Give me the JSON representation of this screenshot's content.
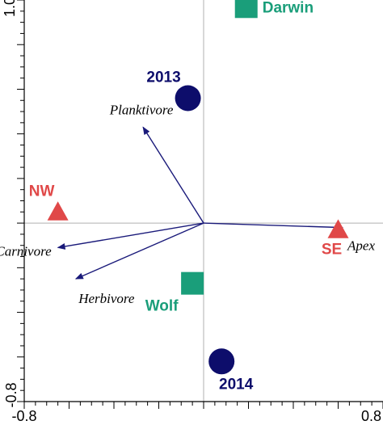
{
  "chart_data": {
    "type": "scatter",
    "title": "",
    "xlabel": "",
    "ylabel": "",
    "xlim": [
      -0.8,
      0.8
    ],
    "ylim": [
      -0.8,
      1.0
    ],
    "x_tick_labels": [
      "-0.8",
      "0.8"
    ],
    "y_tick_labels": [
      "1.0",
      "-0.8"
    ],
    "grid": false,
    "zero_lines": true,
    "colors": {
      "arrow": "#1a1a7a",
      "circle": "#0d0d6b",
      "square": "#1a9e7a",
      "triangle": "#e04848",
      "axis": "#000000",
      "zero_line": "#b0b0b0"
    },
    "arrows": [
      {
        "label": "Planktivore",
        "x": -0.27,
        "y": 0.43
      },
      {
        "label": "Carnivore",
        "x": -0.65,
        "y": -0.11
      },
      {
        "label": "Herbivore",
        "x": -0.57,
        "y": -0.25
      },
      {
        "label": "Apex",
        "x": 0.62,
        "y": -0.02
      }
    ],
    "points": [
      {
        "label": "2013",
        "group": "year",
        "shape": "circle",
        "x": -0.07,
        "y": 0.56
      },
      {
        "label": "2014",
        "group": "year",
        "shape": "circle",
        "x": 0.08,
        "y": -0.62
      },
      {
        "label": "Darwin",
        "group": "island",
        "shape": "square",
        "x": 0.19,
        "y": 0.97
      },
      {
        "label": "Wolf",
        "group": "island",
        "shape": "square",
        "x": -0.05,
        "y": -0.27
      },
      {
        "label": "NW",
        "group": "region",
        "shape": "triangle",
        "x": -0.65,
        "y": 0.05
      },
      {
        "label": "SE",
        "group": "region",
        "shape": "triangle",
        "x": 0.6,
        "y": -0.03
      }
    ]
  }
}
